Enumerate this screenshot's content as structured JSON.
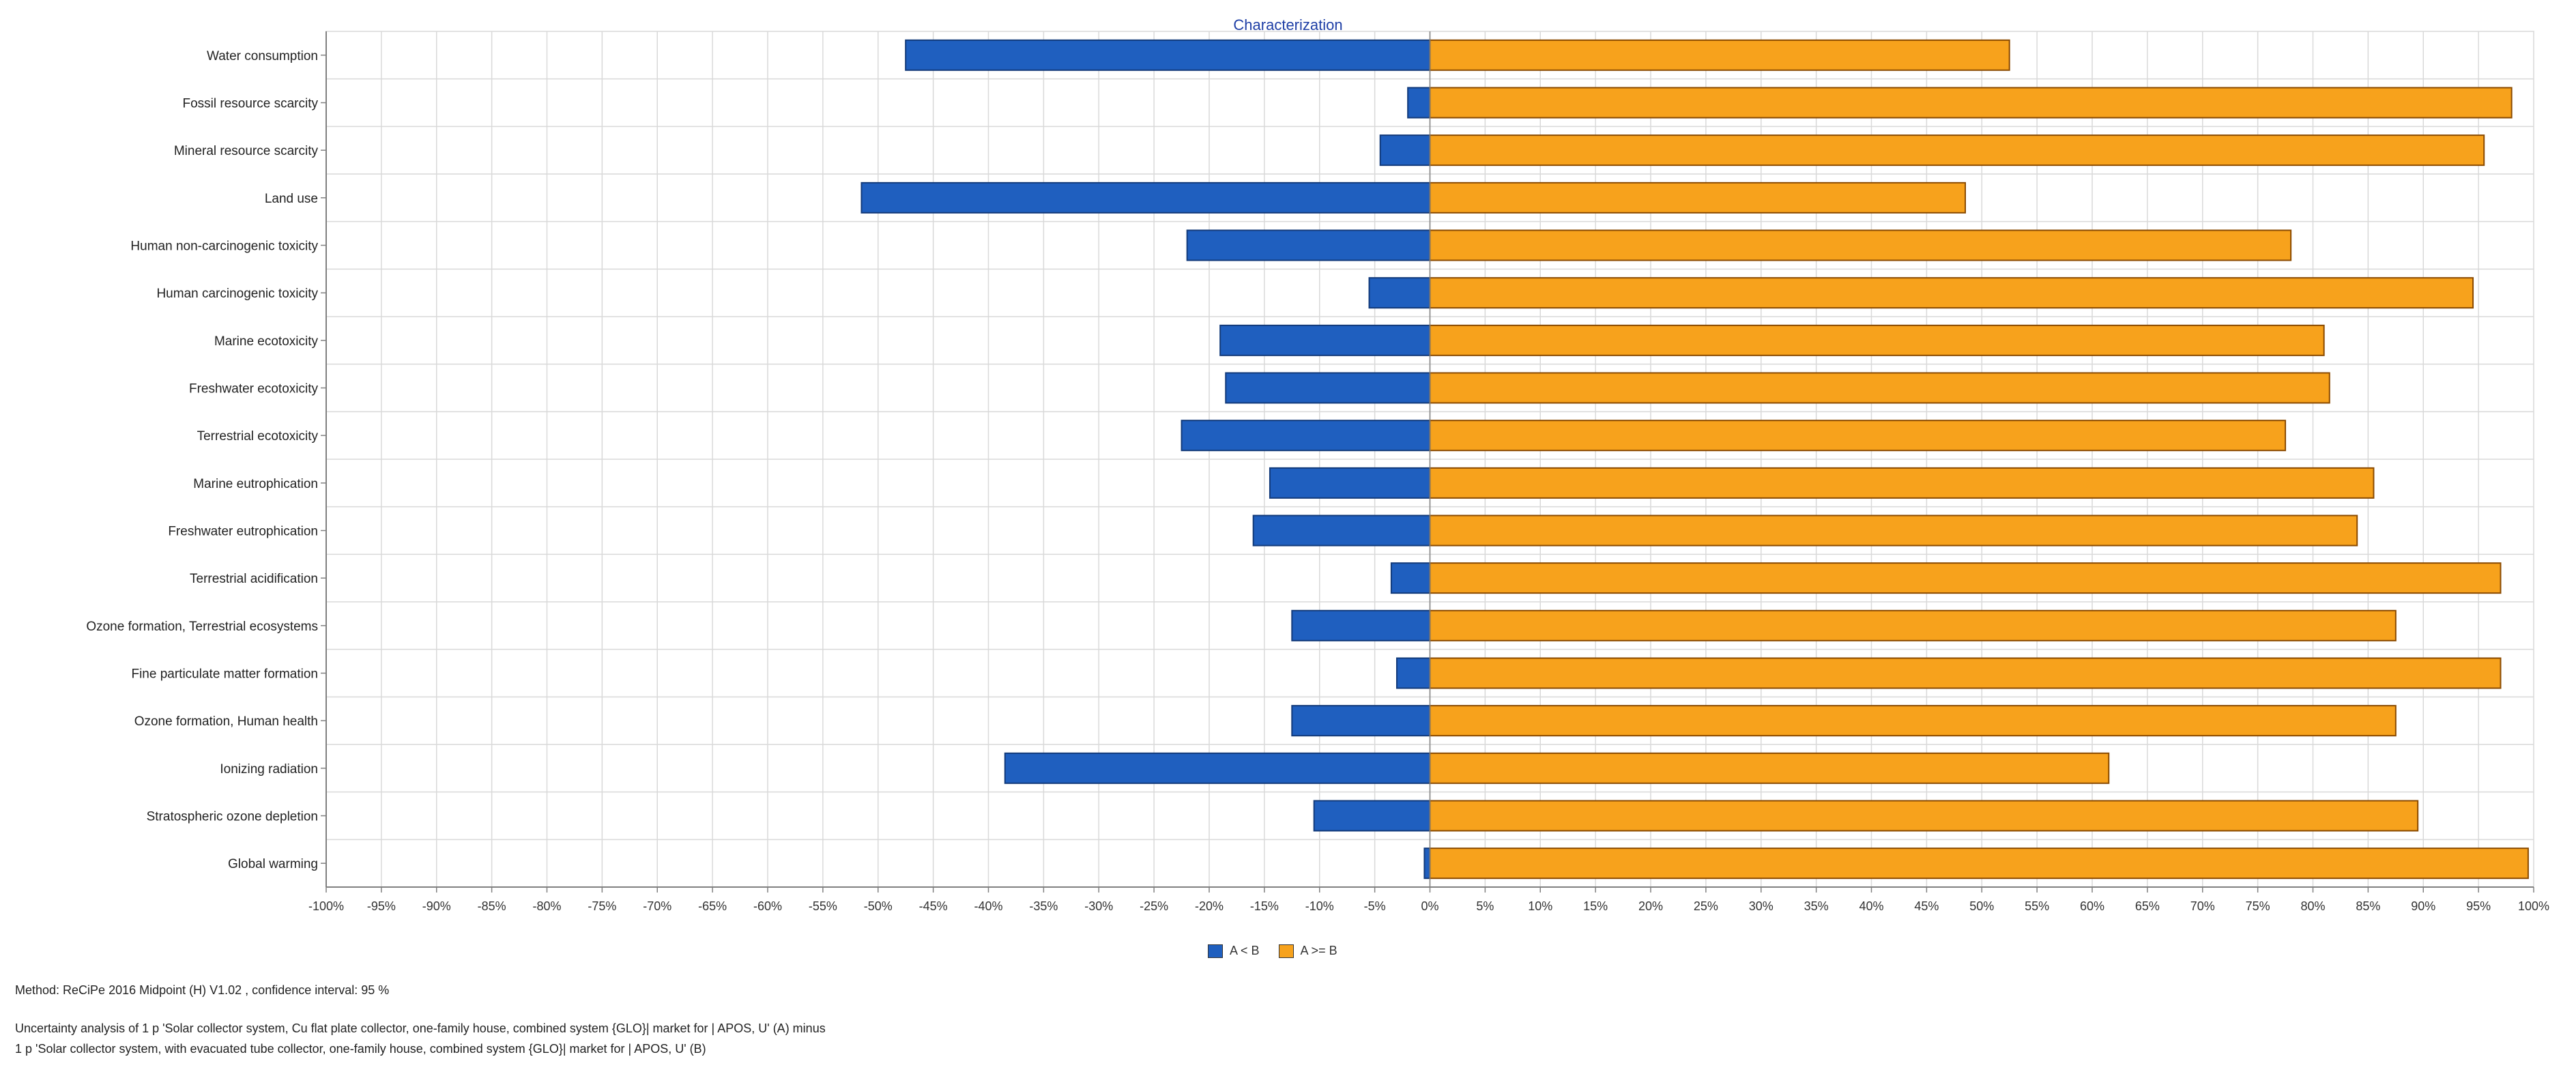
{
  "chart_data": {
    "type": "bar",
    "orientation": "horizontal",
    "title": "Characterization",
    "categories": [
      "Water consumption",
      "Fossil resource scarcity",
      "Mineral resource scarcity",
      "Land use",
      "Human non-carcinogenic toxicity",
      "Human carcinogenic toxicity",
      "Marine ecotoxicity",
      "Freshwater ecotoxicity",
      "Terrestrial ecotoxicity",
      "Marine eutrophication",
      "Freshwater eutrophication",
      "Terrestrial acidification",
      "Ozone formation, Terrestrial ecosystems",
      "Fine particulate matter formation",
      "Ozone formation, Human health",
      "Ionizing radiation",
      "Stratospheric ozone depletion",
      "Global warming"
    ],
    "series": [
      {
        "name": "A < B",
        "color": "#1f5fbf",
        "values": [
          -47.5,
          -2,
          -4.5,
          -51.5,
          -22,
          -5.5,
          -19,
          -18.5,
          -22.5,
          -14.5,
          -16,
          -3.5,
          -12.5,
          -3,
          -12.5,
          -38.5,
          -10.5,
          -0.5
        ]
      },
      {
        "name": "A >= B",
        "color": "#f7a21c",
        "values": [
          52.5,
          98,
          95.5,
          48.5,
          78,
          94.5,
          81,
          81.5,
          77.5,
          85.5,
          84,
          97,
          87.5,
          97,
          87.5,
          61.5,
          89.5,
          99.5
        ]
      }
    ],
    "xlim": [
      -100,
      100
    ],
    "xticks": [
      "-100%",
      "-95%",
      "-90%",
      "-85%",
      "-80%",
      "-75%",
      "-70%",
      "-65%",
      "-60%",
      "-55%",
      "-50%",
      "-45%",
      "-40%",
      "-35%",
      "-30%",
      "-25%",
      "-20%",
      "-15%",
      "-10%",
      "-5%",
      "0%",
      "5%",
      "10%",
      "15%",
      "20%",
      "25%",
      "30%",
      "35%",
      "40%",
      "45%",
      "50%",
      "55%",
      "60%",
      "65%",
      "70%",
      "75%",
      "80%",
      "85%",
      "90%",
      "95%",
      "100%"
    ],
    "grid": true,
    "legend": "bottom-center"
  },
  "footer": {
    "method": "Method: ReCiPe 2016 Midpoint (H) V1.02 , confidence interval: 95 %",
    "line1": "Uncertainty analysis of 1 p 'Solar collector system, Cu flat plate collector, one-family house, combined system {GLO}| market for | APOS, U' (A) minus",
    "line2": "1 p 'Solar collector system, with evacuated tube collector, one-family house, combined system {GLO}| market for | APOS, U' (B)"
  },
  "colors": {
    "grid": "#d9d9d9",
    "axis": "#808080",
    "title": "#1f3fa6"
  }
}
